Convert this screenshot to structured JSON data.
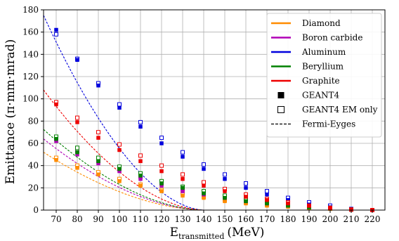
{
  "chart_data": {
    "type": "scatter",
    "xlabel_main": "E",
    "xlabel_sub": "transmitted",
    "xlabel_unit": "(MeV)",
    "ylabel": "Emittance (π·mm·mrad)",
    "xlim": [
      64,
      226
    ],
    "ylim": [
      0,
      180
    ],
    "xticks": [
      70,
      80,
      90,
      100,
      110,
      120,
      130,
      140,
      150,
      160,
      170,
      180,
      190,
      200,
      210,
      220
    ],
    "yticks": [
      0,
      20,
      40,
      60,
      80,
      100,
      120,
      140,
      160,
      180
    ],
    "grid": true,
    "legend_position": "top-right",
    "x": [
      70,
      80,
      90,
      100,
      110,
      120,
      130,
      140,
      150,
      160,
      170,
      180,
      190,
      200,
      210,
      220
    ],
    "series": [
      {
        "name": "Diamond",
        "color": "#ff8c00",
        "geant4": [
          45,
          38,
          32,
          26,
          22,
          17,
          13,
          11,
          8,
          6,
          4,
          3,
          2,
          1,
          0.5,
          0
        ],
        "geant4_em": [
          47,
          40,
          34,
          28,
          23,
          18,
          15,
          12,
          9,
          7,
          5,
          4,
          2.5,
          1.5,
          0.5,
          0
        ]
      },
      {
        "name": "Boron carbide",
        "color": "#b000b5",
        "geant4": [
          62,
          50,
          42,
          35,
          28,
          22,
          17,
          14,
          11,
          8,
          6,
          4,
          3,
          1.5,
          0.5,
          0
        ],
        "geant4_em": [
          64,
          53,
          44,
          37,
          30,
          24,
          19,
          15,
          12,
          9,
          7,
          5,
          3,
          2,
          0.5,
          0
        ]
      },
      {
        "name": "Aluminum",
        "color": "#0000dd",
        "geant4": [
          162,
          135,
          112,
          92,
          75,
          60,
          48,
          37,
          28,
          20,
          14,
          9,
          5,
          2.5,
          1,
          0
        ],
        "geant4_em": [
          158,
          136,
          114,
          95,
          79,
          65,
          52,
          41,
          32,
          24,
          17,
          11,
          7,
          4,
          1,
          0
        ]
      },
      {
        "name": "Beryllium",
        "color": "#008000",
        "geant4": [
          64,
          52,
          44,
          37,
          31,
          24,
          20,
          15,
          11,
          8,
          6,
          4,
          2.5,
          1.5,
          0.5,
          0
        ],
        "geant4_em": [
          66,
          56,
          47,
          39,
          33,
          26,
          21,
          17,
          13,
          10,
          7,
          5,
          3,
          2,
          0.5,
          0
        ]
      },
      {
        "name": "Graphite",
        "color": "#ee0000",
        "geant4": [
          95,
          79,
          65,
          54,
          44,
          35,
          28,
          22,
          17,
          12,
          9,
          6,
          4,
          2,
          0.5,
          0
        ],
        "geant4_em": [
          97,
          83,
          70,
          59,
          49,
          40,
          32,
          25,
          19,
          14,
          10,
          7,
          4,
          2,
          0.5,
          0
        ]
      }
    ],
    "fermi_eyges": {
      "diamond": [
        52,
        0.0131,
        1.8
      ],
      "boron_carbide": [
        64,
        0.0131,
        1.8
      ],
      "aluminum": [
        175,
        0.0131,
        1.8
      ],
      "beryllium": [
        72.5,
        0.0131,
        1.8
      ],
      "graphite": [
        108,
        0.0131,
        1.8
      ]
    },
    "legend": {
      "items": [
        {
          "label": "Diamond",
          "kind": "line",
          "color": "#ff8c00"
        },
        {
          "label": "Boron carbide",
          "kind": "line",
          "color": "#b000b5"
        },
        {
          "label": "Aluminum",
          "kind": "line",
          "color": "#0000dd"
        },
        {
          "label": "Beryllium",
          "kind": "line",
          "color": "#008000"
        },
        {
          "label": "Graphite",
          "kind": "line",
          "color": "#ee0000"
        },
        {
          "label": "GEANT4",
          "kind": "filled-square",
          "color": "#000000"
        },
        {
          "label": "GEANT4 EM only",
          "kind": "open-square",
          "color": "#000000"
        },
        {
          "label": "Fermi-Eyges",
          "kind": "dashed-line",
          "color": "#000000"
        }
      ]
    }
  }
}
